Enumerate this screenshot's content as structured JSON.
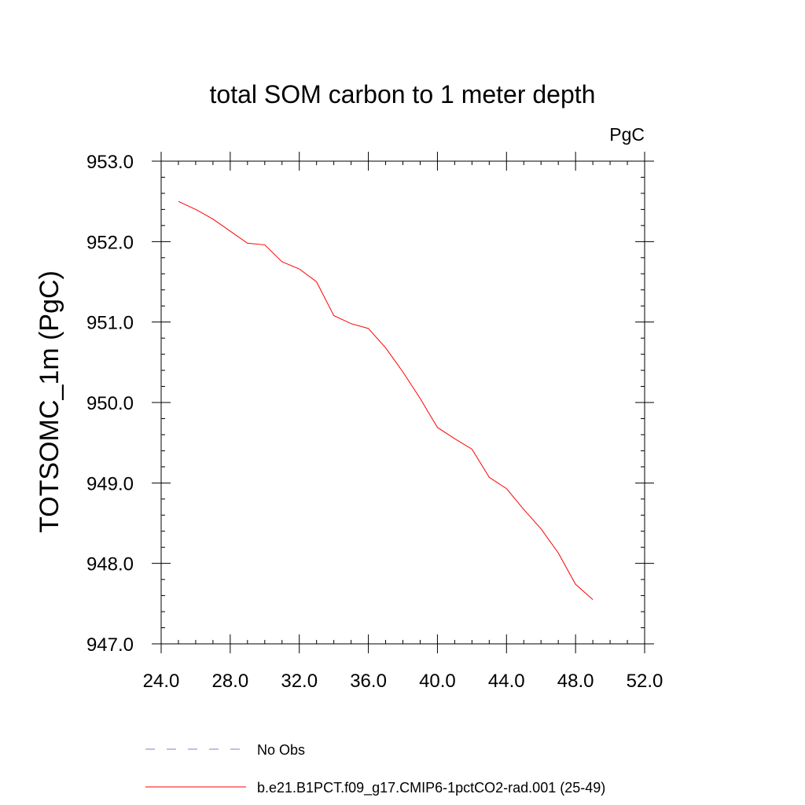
{
  "chart_data": {
    "type": "line",
    "title": "total SOM carbon to 1 meter depth",
    "units_label": "PgC",
    "xlabel": "",
    "ylabel": "TOTSOMC_1m  (PgC)",
    "xlim": [
      24.0,
      52.0
    ],
    "ylim": [
      947.0,
      953.0
    ],
    "x_ticks": [
      24.0,
      28.0,
      32.0,
      36.0,
      40.0,
      44.0,
      48.0,
      52.0
    ],
    "x_tick_labels": [
      "24.0",
      "28.0",
      "32.0",
      "36.0",
      "40.0",
      "44.0",
      "48.0",
      "52.0"
    ],
    "y_ticks": [
      947.0,
      948.0,
      949.0,
      950.0,
      951.0,
      952.0,
      953.0
    ],
    "y_tick_labels": [
      "947.0",
      "948.0",
      "949.0",
      "950.0",
      "951.0",
      "952.0",
      "953.0"
    ],
    "grid": false,
    "legend_placement": "bottom",
    "series": [
      {
        "name": "No Obs",
        "color": "#7f7fd8",
        "style": "dashed",
        "x": [],
        "y": []
      },
      {
        "name": "b.e21.B1PCT.f09_g17.CMIP6-1pctCO2-rad.001 (25-49)",
        "color": "#ff0000",
        "style": "solid",
        "x": [
          25,
          26,
          27,
          28,
          29,
          30,
          31,
          32,
          33,
          34,
          35,
          36,
          37,
          38,
          39,
          40,
          41,
          42,
          43,
          44,
          45,
          46,
          47,
          48,
          49
        ],
        "y": [
          952.5,
          952.4,
          952.28,
          952.13,
          951.98,
          951.96,
          951.75,
          951.66,
          951.5,
          951.08,
          950.98,
          950.92,
          950.68,
          950.38,
          950.05,
          949.69,
          949.55,
          949.42,
          949.07,
          948.93,
          948.67,
          948.43,
          948.13,
          947.74,
          947.55
        ]
      }
    ]
  }
}
